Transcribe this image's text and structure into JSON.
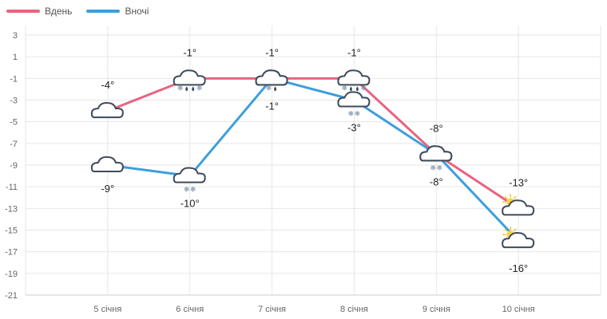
{
  "chart_data": {
    "type": "line",
    "categories": [
      "5 січня",
      "6 січня",
      "7 січня",
      "8 січня",
      "9 січня",
      "10 січня"
    ],
    "series": [
      {
        "name": "Вдень",
        "color": "#e8647f",
        "values": [
          -4,
          -1,
          -1,
          -1,
          -8,
          -13
        ],
        "labels": [
          "-4°",
          "-1°",
          "-1°",
          "-1°",
          "-8°",
          "-13°"
        ],
        "icons": [
          "cloud-icon",
          "cloud-rain-snow-icon",
          "cloud-icon",
          "cloud-rain-snow-icon",
          "cloud-icon",
          "sun-cloud-icon"
        ]
      },
      {
        "name": "Вночі",
        "color": "#3d9fdb",
        "values": [
          -9,
          -10,
          -1,
          -3,
          -8,
          -16
        ],
        "labels": [
          "-9°",
          "-10°",
          "-1°",
          "-3°",
          "-8°",
          "-16°"
        ],
        "icons": [
          "cloud-icon",
          "cloud-snow-icon",
          "cloud-rain-snow-icon",
          "cloud-snow-icon",
          "cloud-snow-icon",
          "sun-cloud-icon"
        ]
      }
    ],
    "yticks": [
      "3",
      "1",
      "-1",
      "-3",
      "-5",
      "-7",
      "-9",
      "-11",
      "-13",
      "-15",
      "-17",
      "-19",
      "-21"
    ],
    "ylim": [
      -21,
      3
    ],
    "grid": true,
    "legend_position": "top-left"
  }
}
